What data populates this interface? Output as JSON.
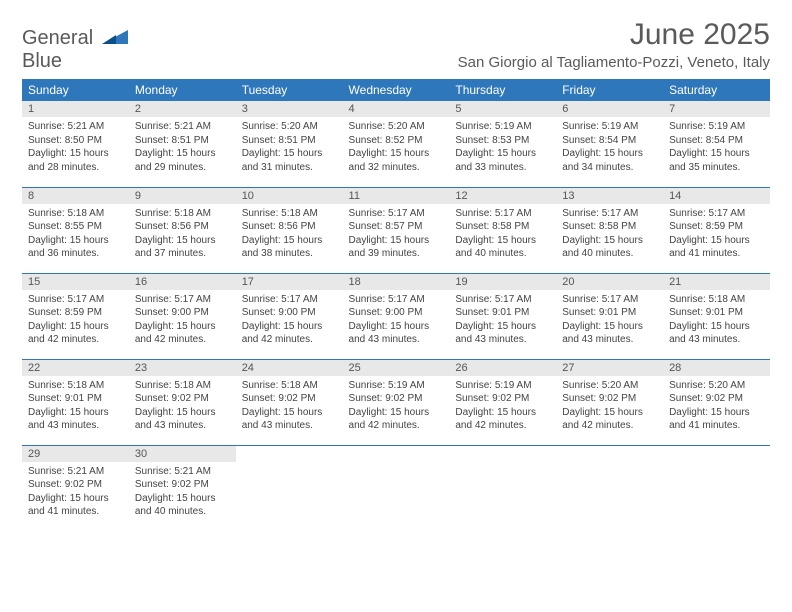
{
  "logo": {
    "line1": "General",
    "line2": "Blue"
  },
  "title": "June 2025",
  "location": "San Giorgio al Tagliamento-Pozzi, Veneto, Italy",
  "colors": {
    "header_bg": "#2f77bb",
    "header_text": "#ffffff",
    "daynum_bg": "#e8e8e8",
    "row_border": "#2f77bb",
    "title_color": "#5a5a5a",
    "body_text": "#444444",
    "background": "#ffffff"
  },
  "dayHeaders": [
    "Sunday",
    "Monday",
    "Tuesday",
    "Wednesday",
    "Thursday",
    "Friday",
    "Saturday"
  ],
  "labels": {
    "sunrise": "Sunrise:",
    "sunset": "Sunset:",
    "daylight": "Daylight:"
  },
  "weeks": [
    [
      {
        "n": "1",
        "sr": "5:21 AM",
        "ss": "8:50 PM",
        "d1": "15 hours",
        "d2": "and 28 minutes."
      },
      {
        "n": "2",
        "sr": "5:21 AM",
        "ss": "8:51 PM",
        "d1": "15 hours",
        "d2": "and 29 minutes."
      },
      {
        "n": "3",
        "sr": "5:20 AM",
        "ss": "8:51 PM",
        "d1": "15 hours",
        "d2": "and 31 minutes."
      },
      {
        "n": "4",
        "sr": "5:20 AM",
        "ss": "8:52 PM",
        "d1": "15 hours",
        "d2": "and 32 minutes."
      },
      {
        "n": "5",
        "sr": "5:19 AM",
        "ss": "8:53 PM",
        "d1": "15 hours",
        "d2": "and 33 minutes."
      },
      {
        "n": "6",
        "sr": "5:19 AM",
        "ss": "8:54 PM",
        "d1": "15 hours",
        "d2": "and 34 minutes."
      },
      {
        "n": "7",
        "sr": "5:19 AM",
        "ss": "8:54 PM",
        "d1": "15 hours",
        "d2": "and 35 minutes."
      }
    ],
    [
      {
        "n": "8",
        "sr": "5:18 AM",
        "ss": "8:55 PM",
        "d1": "15 hours",
        "d2": "and 36 minutes."
      },
      {
        "n": "9",
        "sr": "5:18 AM",
        "ss": "8:56 PM",
        "d1": "15 hours",
        "d2": "and 37 minutes."
      },
      {
        "n": "10",
        "sr": "5:18 AM",
        "ss": "8:56 PM",
        "d1": "15 hours",
        "d2": "and 38 minutes."
      },
      {
        "n": "11",
        "sr": "5:17 AM",
        "ss": "8:57 PM",
        "d1": "15 hours",
        "d2": "and 39 minutes."
      },
      {
        "n": "12",
        "sr": "5:17 AM",
        "ss": "8:58 PM",
        "d1": "15 hours",
        "d2": "and 40 minutes."
      },
      {
        "n": "13",
        "sr": "5:17 AM",
        "ss": "8:58 PM",
        "d1": "15 hours",
        "d2": "and 40 minutes."
      },
      {
        "n": "14",
        "sr": "5:17 AM",
        "ss": "8:59 PM",
        "d1": "15 hours",
        "d2": "and 41 minutes."
      }
    ],
    [
      {
        "n": "15",
        "sr": "5:17 AM",
        "ss": "8:59 PM",
        "d1": "15 hours",
        "d2": "and 42 minutes."
      },
      {
        "n": "16",
        "sr": "5:17 AM",
        "ss": "9:00 PM",
        "d1": "15 hours",
        "d2": "and 42 minutes."
      },
      {
        "n": "17",
        "sr": "5:17 AM",
        "ss": "9:00 PM",
        "d1": "15 hours",
        "d2": "and 42 minutes."
      },
      {
        "n": "18",
        "sr": "5:17 AM",
        "ss": "9:00 PM",
        "d1": "15 hours",
        "d2": "and 43 minutes."
      },
      {
        "n": "19",
        "sr": "5:17 AM",
        "ss": "9:01 PM",
        "d1": "15 hours",
        "d2": "and 43 minutes."
      },
      {
        "n": "20",
        "sr": "5:17 AM",
        "ss": "9:01 PM",
        "d1": "15 hours",
        "d2": "and 43 minutes."
      },
      {
        "n": "21",
        "sr": "5:18 AM",
        "ss": "9:01 PM",
        "d1": "15 hours",
        "d2": "and 43 minutes."
      }
    ],
    [
      {
        "n": "22",
        "sr": "5:18 AM",
        "ss": "9:01 PM",
        "d1": "15 hours",
        "d2": "and 43 minutes."
      },
      {
        "n": "23",
        "sr": "5:18 AM",
        "ss": "9:02 PM",
        "d1": "15 hours",
        "d2": "and 43 minutes."
      },
      {
        "n": "24",
        "sr": "5:18 AM",
        "ss": "9:02 PM",
        "d1": "15 hours",
        "d2": "and 43 minutes."
      },
      {
        "n": "25",
        "sr": "5:19 AM",
        "ss": "9:02 PM",
        "d1": "15 hours",
        "d2": "and 42 minutes."
      },
      {
        "n": "26",
        "sr": "5:19 AM",
        "ss": "9:02 PM",
        "d1": "15 hours",
        "d2": "and 42 minutes."
      },
      {
        "n": "27",
        "sr": "5:20 AM",
        "ss": "9:02 PM",
        "d1": "15 hours",
        "d2": "and 42 minutes."
      },
      {
        "n": "28",
        "sr": "5:20 AM",
        "ss": "9:02 PM",
        "d1": "15 hours",
        "d2": "and 41 minutes."
      }
    ],
    [
      {
        "n": "29",
        "sr": "5:21 AM",
        "ss": "9:02 PM",
        "d1": "15 hours",
        "d2": "and 41 minutes."
      },
      {
        "n": "30",
        "sr": "5:21 AM",
        "ss": "9:02 PM",
        "d1": "15 hours",
        "d2": "and 40 minutes."
      },
      null,
      null,
      null,
      null,
      null
    ]
  ]
}
